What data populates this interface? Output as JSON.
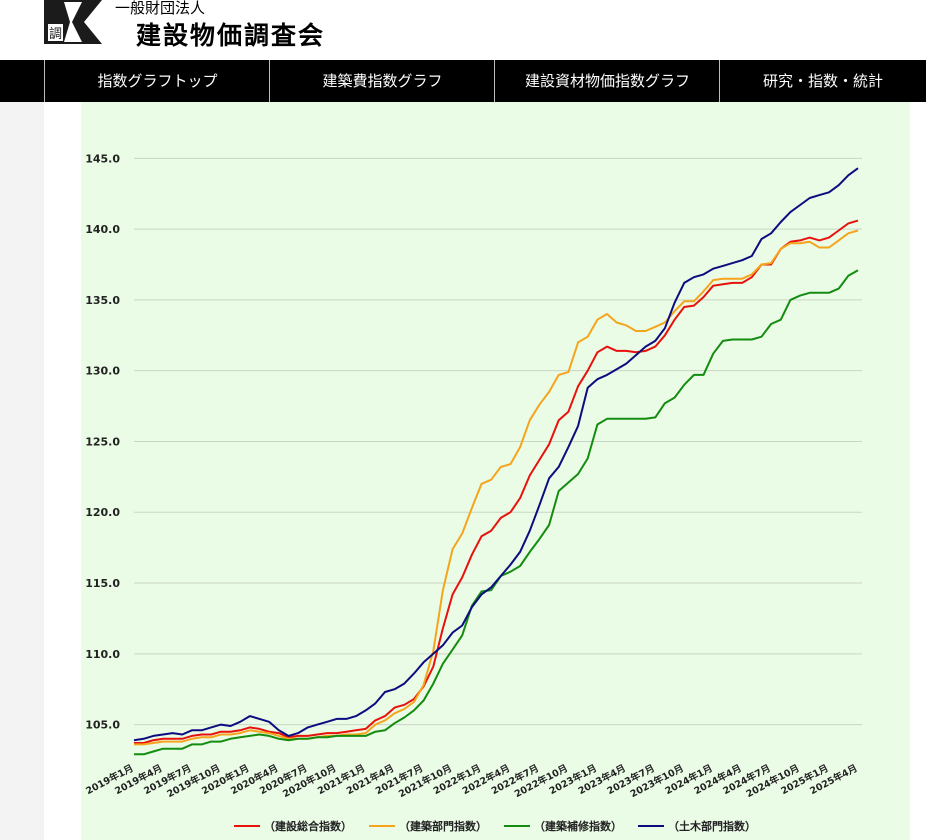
{
  "header": {
    "org_sub": "一般財団法人",
    "org_name": "建設物価調査会",
    "logo_glyph": "調"
  },
  "nav": {
    "items": [
      {
        "label": "指数グラフトップ"
      },
      {
        "label": "建築費指数グラフ"
      },
      {
        "label": "建設資材物価指数グラフ"
      },
      {
        "label": "研究・指数・統計"
      }
    ]
  },
  "chart_data": {
    "type": "line",
    "title": "",
    "xlabel": "",
    "ylabel": "",
    "ylim": [
      102.5,
      147.0
    ],
    "yticks": [
      105.0,
      110.0,
      115.0,
      120.0,
      125.0,
      130.0,
      135.0,
      140.0,
      145.0
    ],
    "x": [
      "2019年1月",
      "2019年2月",
      "2019年3月",
      "2019年4月",
      "2019年5月",
      "2019年6月",
      "2019年7月",
      "2019年8月",
      "2019年9月",
      "2019年10月",
      "2019年11月",
      "2019年12月",
      "2020年1月",
      "2020年2月",
      "2020年3月",
      "2020年4月",
      "2020年5月",
      "2020年6月",
      "2020年7月",
      "2020年8月",
      "2020年9月",
      "2020年10月",
      "2020年11月",
      "2020年12月",
      "2021年1月",
      "2021年2月",
      "2021年3月",
      "2021年4月",
      "2021年5月",
      "2021年6月",
      "2021年7月",
      "2021年8月",
      "2021年9月",
      "2021年10月",
      "2021年11月",
      "2021年12月",
      "2022年1月",
      "2022年2月",
      "2022年3月",
      "2022年4月",
      "2022年5月",
      "2022年6月",
      "2022年7月",
      "2022年8月",
      "2022年9月",
      "2022年10月",
      "2022年11月",
      "2022年12月",
      "2023年1月",
      "2023年2月",
      "2023年3月",
      "2023年4月",
      "2023年5月",
      "2023年6月",
      "2023年7月",
      "2023年8月",
      "2023年9月",
      "2023年10月",
      "2023年11月",
      "2023年12月",
      "2024年1月",
      "2024年2月",
      "2024年3月",
      "2024年4月",
      "2024年5月",
      "2024年6月",
      "2024年7月",
      "2024年8月",
      "2024年9月",
      "2024年10月",
      "2024年11月",
      "2024年12月",
      "2025年1月",
      "2025年2月",
      "2025年3月",
      "2025年4月"
    ],
    "x_tick_labels": [
      "2019年1月",
      "2019年4月",
      "2019年7月",
      "2019年10月",
      "2020年1月",
      "2020年4月",
      "2020年7月",
      "2020年10月",
      "2021年1月",
      "2021年4月",
      "2021年7月",
      "2021年10月",
      "2022年1月",
      "2022年4月",
      "2022年7月",
      "2022年10月",
      "2023年1月",
      "2023年4月",
      "2023年7月",
      "2023年10月",
      "2024年1月",
      "2024年4月",
      "2024年7月",
      "2024年10月",
      "2025年1月",
      "2025年4月"
    ],
    "grid": true,
    "legend_position": "bottom",
    "series": [
      {
        "name": "（建設総合指数）",
        "color": "#e8120c",
        "values": [
          103.7,
          103.7,
          103.9,
          104.0,
          104.0,
          104.0,
          104.2,
          104.3,
          104.3,
          104.5,
          104.5,
          104.6,
          104.8,
          104.7,
          104.5,
          104.4,
          104.1,
          104.2,
          104.2,
          104.3,
          104.4,
          104.4,
          104.5,
          104.6,
          104.7,
          105.3,
          105.6,
          106.2,
          106.4,
          106.8,
          107.7,
          109.1,
          111.8,
          114.2,
          115.4,
          117.0,
          118.3,
          118.7,
          119.6,
          120.0,
          121.0,
          122.6,
          123.7,
          124.8,
          126.5,
          127.1,
          128.9,
          130.0,
          131.3,
          131.7,
          131.4,
          131.4,
          131.3,
          131.4,
          131.7,
          132.5,
          133.6,
          134.5,
          134.6,
          135.2,
          136.0,
          136.1,
          136.2,
          136.2,
          136.6,
          137.5,
          137.5,
          138.6,
          139.1,
          139.2,
          139.4,
          139.2,
          139.4,
          139.9,
          140.4,
          140.6
        ]
      },
      {
        "name": "（建築部門指数）",
        "color": "#f5a51c",
        "values": [
          103.6,
          103.6,
          103.7,
          103.8,
          103.8,
          103.8,
          104.0,
          104.1,
          104.1,
          104.3,
          104.3,
          104.4,
          104.6,
          104.5,
          104.4,
          104.2,
          104.0,
          104.0,
          104.0,
          104.1,
          104.2,
          104.2,
          104.3,
          104.3,
          104.4,
          105.0,
          105.3,
          105.8,
          106.1,
          106.6,
          107.8,
          110.2,
          114.5,
          117.4,
          118.5,
          120.3,
          122.0,
          122.3,
          123.2,
          123.4,
          124.6,
          126.5,
          127.6,
          128.5,
          129.7,
          129.9,
          132.0,
          132.4,
          133.6,
          134.0,
          133.4,
          133.2,
          132.8,
          132.8,
          133.1,
          133.4,
          134.2,
          134.9,
          134.9,
          135.6,
          136.4,
          136.5,
          136.5,
          136.5,
          136.8,
          137.5,
          137.6,
          138.6,
          139.0,
          139.0,
          139.1,
          138.7,
          138.7,
          139.2,
          139.7,
          139.9
        ]
      },
      {
        "name": "（建築補修指数）",
        "color": "#148c10",
        "values": [
          102.9,
          102.9,
          103.1,
          103.3,
          103.3,
          103.3,
          103.6,
          103.6,
          103.8,
          103.8,
          104.0,
          104.1,
          104.2,
          104.3,
          104.2,
          104.0,
          103.9,
          104.0,
          104.0,
          104.1,
          104.1,
          104.2,
          104.2,
          104.2,
          104.2,
          104.5,
          104.6,
          105.1,
          105.5,
          106.0,
          106.7,
          107.9,
          109.3,
          110.3,
          111.3,
          113.4,
          114.4,
          114.5,
          115.5,
          115.8,
          116.2,
          117.2,
          118.1,
          119.1,
          121.5,
          122.1,
          122.7,
          123.8,
          126.2,
          126.6,
          126.6,
          126.6,
          126.6,
          126.6,
          126.7,
          127.7,
          128.1,
          129.0,
          129.7,
          129.7,
          131.2,
          132.1,
          132.2,
          132.2,
          132.2,
          132.4,
          133.3,
          133.6,
          135.0,
          135.3,
          135.5,
          135.5,
          135.5,
          135.8,
          136.7,
          137.1
        ]
      },
      {
        "name": "（土木部門指数）",
        "color": "#0c0c80",
        "values": [
          103.9,
          104.0,
          104.2,
          104.3,
          104.4,
          104.3,
          104.6,
          104.6,
          104.8,
          105.0,
          104.9,
          105.2,
          105.6,
          105.4,
          105.2,
          104.6,
          104.2,
          104.4,
          104.8,
          105.0,
          105.2,
          105.4,
          105.4,
          105.6,
          106.0,
          106.5,
          107.3,
          107.5,
          107.9,
          108.6,
          109.4,
          110.0,
          110.6,
          111.5,
          112.0,
          113.3,
          114.2,
          114.7,
          115.5,
          116.3,
          117.2,
          118.7,
          120.5,
          122.4,
          123.2,
          124.6,
          126.1,
          128.8,
          129.4,
          129.7,
          130.1,
          130.5,
          131.1,
          131.7,
          132.1,
          133.0,
          134.8,
          136.2,
          136.6,
          136.8,
          137.2,
          137.4,
          137.6,
          137.8,
          138.1,
          139.3,
          139.7,
          140.5,
          141.2,
          141.7,
          142.2,
          142.4,
          142.6,
          143.1,
          143.8,
          144.3
        ]
      }
    ]
  }
}
